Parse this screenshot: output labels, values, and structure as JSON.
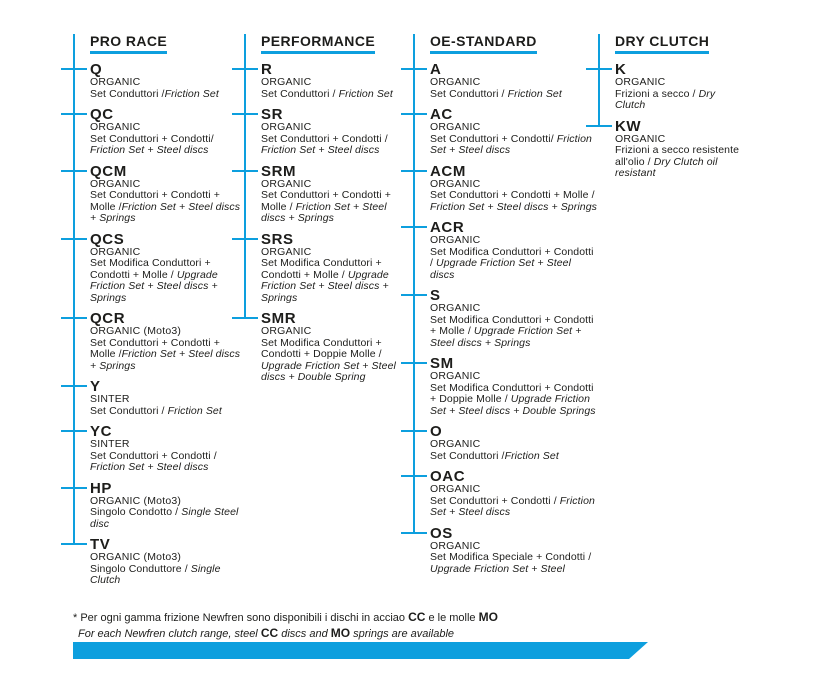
{
  "colors": {
    "accent_blue": "#0d9fde",
    "text": "#1d1d1b"
  },
  "columns": [
    {
      "title": "PRO RACE",
      "items": [
        {
          "code": "Q",
          "type": "ORGANIC",
          "desc_it": "Set Conduttori /",
          "desc_en": "Friction Set"
        },
        {
          "code": "QC",
          "type": "ORGANIC",
          "desc_it": "Set Conduttori + Condotti/ ",
          "desc_en": "Friction Set + Steel discs"
        },
        {
          "code": "QCM",
          "type": "ORGANIC",
          "desc_it": "Set Conduttori + Condotti + Molle /",
          "desc_en": "Friction Set + Steel discs + Springs"
        },
        {
          "code": "QCS",
          "type": "ORGANIC",
          "desc_it": "Set Modifica Conduttori + Condotti + Molle / ",
          "desc_en": "Upgrade Friction Set + Steel discs + Springs"
        },
        {
          "code": "QCR",
          "type": "ORGANIC (Moto3)",
          "desc_it": "Set Conduttori + Condotti + Molle /",
          "desc_en": "Friction Set + Steel discs + Springs"
        },
        {
          "code": "Y",
          "type": "SINTER",
          "desc_it": "Set Conduttori / ",
          "desc_en": "Friction Set"
        },
        {
          "code": "YC",
          "type": "SINTER",
          "desc_it": "Set Conduttori + Condotti / ",
          "desc_en": "Friction Set + Steel discs"
        },
        {
          "code": "HP",
          "type": "ORGANIC (Moto3)",
          "desc_it": "Singolo Condotto / ",
          "desc_en": "Single Steel disc"
        },
        {
          "code": "TV",
          "type": "ORGANIC (Moto3)",
          "desc_it": "Singolo Conduttore / ",
          "desc_en": "Single Clutch"
        }
      ]
    },
    {
      "title": "PERFORMANCE",
      "items": [
        {
          "code": "R",
          "type": "ORGANIC",
          "desc_it": "Set Conduttori / ",
          "desc_en": "Friction Set"
        },
        {
          "code": "SR",
          "type": "ORGANIC",
          "desc_it": "Set Conduttori + Condotti / ",
          "desc_en": "Friction Set + Steel discs"
        },
        {
          "code": "SRM",
          "type": "ORGANIC",
          "desc_it": "Set Conduttori + Condotti + Molle / ",
          "desc_en": "Friction Set + Steel discs + Springs"
        },
        {
          "code": "SRS",
          "type": "ORGANIC",
          "desc_it": "Set Modifica Conduttori + Condotti + Molle / ",
          "desc_en": "Upgrade Friction Set + Steel discs + Springs"
        },
        {
          "code": "SMR",
          "type": "ORGANIC",
          "desc_it": "Set Modifica Conduttori + Condotti + Doppie Molle / ",
          "desc_en": "Upgrade Friction Set + Steel discs + Double Spring"
        }
      ]
    },
    {
      "title": "OE-STANDARD",
      "items": [
        {
          "code": "A",
          "type": "ORGANIC",
          "desc_it": "Set Conduttori / ",
          "desc_en": "Friction Set"
        },
        {
          "code": "AC",
          "type": "ORGANIC",
          "desc_it": "Set Conduttori + Condotti/ ",
          "desc_en": "Friction Set + Steel discs"
        },
        {
          "code": "ACM",
          "type": "ORGANIC",
          "desc_it": "Set Conduttori + Condotti + Molle / ",
          "desc_en": "Friction Set + Steel discs + Springs"
        },
        {
          "code": "ACR",
          "type": "ORGANIC",
          "desc_it": "Set Modifica Conduttori + Condotti / ",
          "desc_en": "Upgrade Friction Set + Steel discs"
        },
        {
          "code": "S",
          "type": "ORGANIC",
          "desc_it": "Set Modifica Conduttori + Condotti + Molle / ",
          "desc_en": "Upgrade Friction Set + Steel discs + Springs"
        },
        {
          "code": "SM",
          "type": "ORGANIC",
          "desc_it": "Set Modifica Conduttori + Condotti + Doppie Molle / ",
          "desc_en": "Upgrade Friction Set + Steel discs + Double Springs"
        },
        {
          "code": "O",
          "type": "ORGANIC",
          "desc_it": "Set Conduttori /",
          "desc_en": "Friction Set"
        },
        {
          "code": "OAC",
          "type": "ORGANIC",
          "desc_it": "Set Conduttori + Condotti / ",
          "desc_en": "Friction Set + Steel discs"
        },
        {
          "code": "OS",
          "type": "ORGANIC",
          "desc_it": "Set Modifica Speciale + Condotti / ",
          "desc_en": "Upgrade Friction Set + Steel"
        }
      ]
    },
    {
      "title": "DRY CLUTCH",
      "items": [
        {
          "code": "K",
          "type": "ORGANIC",
          "desc_it": "Frizioni a secco / ",
          "desc_en": "Dry Clutch"
        },
        {
          "code": "KW",
          "type": "ORGANIC",
          "desc_it": "Frizioni a secco resistente all'olio / ",
          "desc_en": "Dry Clutch oil resistant"
        }
      ]
    }
  ],
  "footer": {
    "note_it": {
      "pre": "* Per ogni gamma frizione Newfren sono disponibili i dischi in acciao ",
      "code1": "CC",
      "mid": " e le molle ",
      "code2": "MO",
      "post": ""
    },
    "note_en": {
      "pre": "For each Newfren clutch range, steel ",
      "code1": "CC",
      "mid": " discs and ",
      "code2": "MO",
      "post": " springs are available"
    }
  }
}
